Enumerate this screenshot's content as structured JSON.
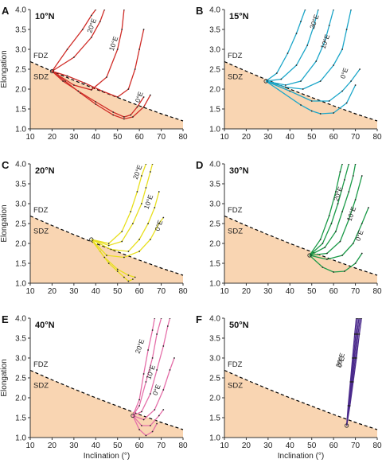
{
  "figure": {
    "xlabel": "Inclination (°)",
    "ylabel": "Elongation",
    "zone_above": "FDZ",
    "zone_below": "SDZ",
    "colors": {
      "sdz_fill": "#f9d5b2",
      "boundary": "#000000",
      "axis": "#333333",
      "marker": "#222222"
    }
  },
  "chart_data": [
    {
      "type": "line",
      "panel": "A",
      "title": "10°N",
      "xlim": [
        10,
        80
      ],
      "ylim": [
        1.0,
        4.0
      ],
      "xticks": [
        10,
        20,
        30,
        40,
        50,
        60,
        70,
        80
      ],
      "yticks": [
        1.0,
        1.5,
        2.0,
        2.5,
        3.0,
        3.5,
        4.0
      ],
      "boundary": {
        "x": [
          10,
          20,
          30,
          40,
          50,
          60,
          70,
          80
        ],
        "y": [
          2.69,
          2.45,
          2.22,
          2.0,
          1.79,
          1.58,
          1.38,
          1.2
        ]
      },
      "color": "#d02d28",
      "lon_labels": [
        "20°E",
        "10°E",
        "0°E"
      ],
      "series": [
        {
          "name": "0°E",
          "x": [
            20,
            26,
            33,
            40,
            48,
            53,
            57,
            62,
            65
          ],
          "y": [
            2.45,
            2.2,
            1.9,
            1.62,
            1.35,
            1.25,
            1.3,
            1.55,
            1.85
          ]
        },
        {
          "x": [
            20,
            25,
            32,
            40,
            48,
            53,
            56,
            59,
            62
          ],
          "y": [
            2.45,
            2.2,
            1.95,
            1.68,
            1.42,
            1.3,
            1.35,
            1.55,
            1.8
          ]
        },
        {
          "name": "10°E",
          "x": [
            20,
            27,
            35,
            43,
            50,
            55,
            58,
            60,
            62
          ],
          "y": [
            2.45,
            2.33,
            2.15,
            1.95,
            1.8,
            2.0,
            2.5,
            3.0,
            3.5
          ]
        },
        {
          "x": [
            20,
            30,
            38,
            45,
            50,
            52,
            53
          ],
          "y": [
            2.45,
            2.1,
            1.98,
            2.3,
            3.0,
            3.5,
            4.0
          ]
        },
        {
          "name": "20°E",
          "x": [
            20,
            30,
            38,
            42,
            44
          ],
          "y": [
            2.45,
            2.8,
            3.3,
            3.7,
            4.0
          ]
        },
        {
          "x": [
            20,
            27,
            34,
            38,
            40
          ],
          "y": [
            2.45,
            3.0,
            3.5,
            3.85,
            4.0
          ]
        }
      ]
    },
    {
      "type": "line",
      "panel": "B",
      "title": "15°N",
      "xlim": [
        10,
        80
      ],
      "ylim": [
        1.0,
        4.0
      ],
      "xticks": [
        10,
        20,
        30,
        40,
        50,
        60,
        70,
        80
      ],
      "yticks": [
        1.0,
        1.5,
        2.0,
        2.5,
        3.0,
        3.5,
        4.0
      ],
      "boundary": {
        "x": [
          10,
          20,
          30,
          40,
          50,
          60,
          70,
          80
        ],
        "y": [
          2.69,
          2.45,
          2.22,
          2.0,
          1.79,
          1.58,
          1.38,
          1.2
        ]
      },
      "color": "#1ba6c9",
      "lon_labels": [
        "20°E",
        "10°E",
        "0°E"
      ],
      "series": [
        {
          "x": [
            29,
            45,
            50,
            54,
            60,
            66,
            70
          ],
          "y": [
            2.2,
            1.6,
            1.45,
            1.38,
            1.4,
            1.65,
            2.1
          ]
        },
        {
          "name": "0°E",
          "x": [
            29,
            40,
            50,
            58,
            64,
            68,
            72
          ],
          "y": [
            2.2,
            1.95,
            1.7,
            1.7,
            1.95,
            2.2,
            2.5
          ]
        },
        {
          "name": "10°E",
          "x": [
            29,
            38,
            46,
            54,
            60,
            64,
            66,
            68
          ],
          "y": [
            2.2,
            2.05,
            2.0,
            2.2,
            2.6,
            3.0,
            3.5,
            4.0
          ]
        },
        {
          "x": [
            29,
            38,
            45,
            52,
            56,
            58,
            60
          ],
          "y": [
            2.2,
            2.1,
            2.2,
            2.7,
            3.2,
            3.6,
            4.0
          ]
        },
        {
          "name": "20°E",
          "x": [
            29,
            36,
            43,
            48,
            51,
            53
          ],
          "y": [
            2.2,
            2.25,
            2.6,
            3.1,
            3.6,
            4.0
          ]
        },
        {
          "x": [
            29,
            34,
            39,
            43,
            45,
            47
          ],
          "y": [
            2.2,
            2.4,
            2.9,
            3.4,
            3.7,
            4.0
          ]
        }
      ]
    },
    {
      "type": "line",
      "panel": "C",
      "title": "20°N",
      "xlim": [
        10,
        80
      ],
      "ylim": [
        1.0,
        4.0
      ],
      "xticks": [
        10,
        20,
        30,
        40,
        50,
        60,
        70,
        80
      ],
      "yticks": [
        1.0,
        1.5,
        2.0,
        2.5,
        3.0,
        3.5,
        4.0
      ],
      "boundary": {
        "x": [
          10,
          20,
          30,
          40,
          50,
          60,
          70,
          80
        ],
        "y": [
          2.69,
          2.45,
          2.22,
          2.0,
          1.79,
          1.58,
          1.38,
          1.2
        ]
      },
      "color": "#e8df1e",
      "lon_labels": [
        "20°E",
        "10°E",
        "0°E"
      ],
      "series": [
        {
          "x": [
            38,
            42,
            46,
            50,
            53,
            55,
            57
          ],
          "y": [
            2.1,
            1.8,
            1.5,
            1.3,
            1.15,
            1.05,
            1.1
          ]
        },
        {
          "x": [
            38,
            44,
            50,
            55,
            58
          ],
          "y": [
            2.1,
            1.65,
            1.35,
            1.2,
            1.15
          ]
        },
        {
          "name": "0°E",
          "x": [
            38,
            45,
            53,
            60,
            65,
            69,
            71
          ],
          "y": [
            2.1,
            1.7,
            1.65,
            1.8,
            2.1,
            2.5,
            2.65
          ]
        },
        {
          "name": "10°E",
          "x": [
            38,
            47,
            55,
            60,
            64,
            67,
            69
          ],
          "y": [
            2.1,
            1.85,
            1.8,
            2.1,
            2.5,
            2.9,
            3.3
          ]
        },
        {
          "x": [
            38,
            46,
            52,
            57,
            61,
            63,
            65,
            66
          ],
          "y": [
            2.1,
            1.95,
            2.05,
            2.5,
            3.0,
            3.4,
            3.8,
            4.0
          ]
        },
        {
          "name": "20°E",
          "x": [
            38,
            46,
            52,
            56,
            59,
            61,
            63
          ],
          "y": [
            2.1,
            2.0,
            2.3,
            2.8,
            3.3,
            3.7,
            4.0
          ]
        }
      ]
    },
    {
      "type": "line",
      "panel": "D",
      "title": "30°N",
      "xlim": [
        10,
        80
      ],
      "ylim": [
        1.0,
        4.0
      ],
      "xticks": [
        10,
        20,
        30,
        40,
        50,
        60,
        70,
        80
      ],
      "yticks": [
        1.0,
        1.5,
        2.0,
        2.5,
        3.0,
        3.5,
        4.0
      ],
      "boundary": {
        "x": [
          10,
          20,
          30,
          40,
          50,
          60,
          70,
          80
        ],
        "y": [
          2.69,
          2.45,
          2.22,
          2.0,
          1.79,
          1.58,
          1.38,
          1.2
        ]
      },
      "color": "#1b9a48",
      "lon_labels": [
        "20°E",
        "10°E",
        "0°E"
      ],
      "series": [
        {
          "x": [
            49,
            55,
            60,
            65,
            70,
            73
          ],
          "y": [
            1.7,
            1.4,
            1.28,
            1.3,
            1.5,
            1.75
          ]
        },
        {
          "name": "0°E",
          "x": [
            49,
            57,
            64,
            69,
            73,
            76
          ],
          "y": [
            1.7,
            1.6,
            1.7,
            2.0,
            2.5,
            2.9
          ]
        },
        {
          "name": "10°E",
          "x": [
            49,
            57,
            63,
            67,
            70,
            73
          ],
          "y": [
            1.7,
            1.75,
            2.05,
            2.6,
            3.1,
            3.7
          ]
        },
        {
          "x": [
            49,
            56,
            61,
            64,
            67,
            69,
            70
          ],
          "y": [
            1.7,
            1.9,
            2.3,
            2.8,
            3.3,
            3.7,
            4.0
          ]
        },
        {
          "name": "20°E",
          "x": [
            49,
            55,
            59,
            62,
            65,
            67
          ],
          "y": [
            1.7,
            2.0,
            2.5,
            3.0,
            3.6,
            4.0
          ]
        },
        {
          "x": [
            49,
            54,
            58,
            61,
            63,
            64
          ],
          "y": [
            1.7,
            2.1,
            2.7,
            3.3,
            3.8,
            4.0
          ]
        }
      ]
    },
    {
      "type": "line",
      "panel": "E",
      "title": "40°N",
      "xlim": [
        10,
        80
      ],
      "ylim": [
        1.0,
        4.0
      ],
      "xticks": [
        10,
        20,
        30,
        40,
        50,
        60,
        70,
        80
      ],
      "yticks": [
        1.0,
        1.5,
        2.0,
        2.5,
        3.0,
        3.5,
        4.0
      ],
      "boundary": {
        "x": [
          10,
          20,
          30,
          40,
          50,
          60,
          70,
          80
        ],
        "y": [
          2.69,
          2.45,
          2.22,
          2.0,
          1.79,
          1.58,
          1.38,
          1.2
        ]
      },
      "color": "#e56fa9",
      "lon_labels": [
        "20°E",
        "10°E",
        "0°E"
      ],
      "series": [
        {
          "x": [
            57,
            60,
            63,
            66,
            68
          ],
          "y": [
            1.55,
            1.2,
            1.05,
            1.15,
            1.35
          ]
        },
        {
          "x": [
            57,
            61,
            65,
            69,
            71
          ],
          "y": [
            1.55,
            1.3,
            1.3,
            1.55,
            1.7
          ]
        },
        {
          "name": "0°E",
          "x": [
            57,
            62,
            67,
            71,
            74,
            76
          ],
          "y": [
            1.55,
            1.45,
            1.7,
            2.2,
            2.7,
            3.0
          ]
        },
        {
          "name": "10°E",
          "x": [
            57,
            61,
            65,
            68,
            71,
            73,
            74
          ],
          "y": [
            1.55,
            1.65,
            2.1,
            2.7,
            3.3,
            3.8,
            4.0
          ]
        },
        {
          "x": [
            57,
            60,
            63,
            66,
            68,
            70
          ],
          "y": [
            1.55,
            1.8,
            2.4,
            3.0,
            3.6,
            4.0
          ]
        },
        {
          "name": "20°E",
          "x": [
            57,
            60,
            62,
            64,
            66,
            67
          ],
          "y": [
            1.55,
            1.95,
            2.6,
            3.2,
            3.7,
            4.0
          ]
        }
      ]
    },
    {
      "type": "line",
      "panel": "F",
      "title": "50°N",
      "xlim": [
        10,
        80
      ],
      "ylim": [
        1.0,
        4.0
      ],
      "xticks": [
        10,
        20,
        30,
        40,
        50,
        60,
        70,
        80
      ],
      "yticks": [
        1.0,
        1.5,
        2.0,
        2.5,
        3.0,
        3.5,
        4.0
      ],
      "boundary": {
        "x": [
          10,
          20,
          30,
          40,
          50,
          60,
          70,
          80
        ],
        "y": [
          2.69,
          2.45,
          2.22,
          2.0,
          1.79,
          1.58,
          1.38,
          1.2
        ]
      },
      "color": "#4b2a8c",
      "lon_labels": [
        "20°E",
        "0°E"
      ],
      "series": [
        {
          "name": "0°E",
          "x": [
            66,
            67.5,
            69,
            70.5,
            71.8,
            72.8
          ],
          "y": [
            1.3,
            1.8,
            2.4,
            3.0,
            3.6,
            4.0
          ]
        },
        {
          "x": [
            66,
            67.3,
            68.6,
            70,
            71.2,
            72.2
          ],
          "y": [
            1.3,
            1.8,
            2.4,
            3.0,
            3.6,
            4.0
          ]
        },
        {
          "x": [
            66,
            67.1,
            68.3,
            69.5,
            70.7,
            71.6
          ],
          "y": [
            1.3,
            1.8,
            2.4,
            3.0,
            3.6,
            4.0
          ]
        },
        {
          "x": [
            66,
            66.9,
            68,
            69.1,
            70.2,
            71.0
          ],
          "y": [
            1.3,
            1.8,
            2.4,
            3.0,
            3.6,
            4.0
          ]
        },
        {
          "name": "20°E",
          "x": [
            66,
            66.7,
            67.7,
            68.7,
            69.7,
            70.4
          ],
          "y": [
            1.3,
            1.8,
            2.4,
            3.0,
            3.6,
            4.0
          ]
        }
      ]
    }
  ]
}
